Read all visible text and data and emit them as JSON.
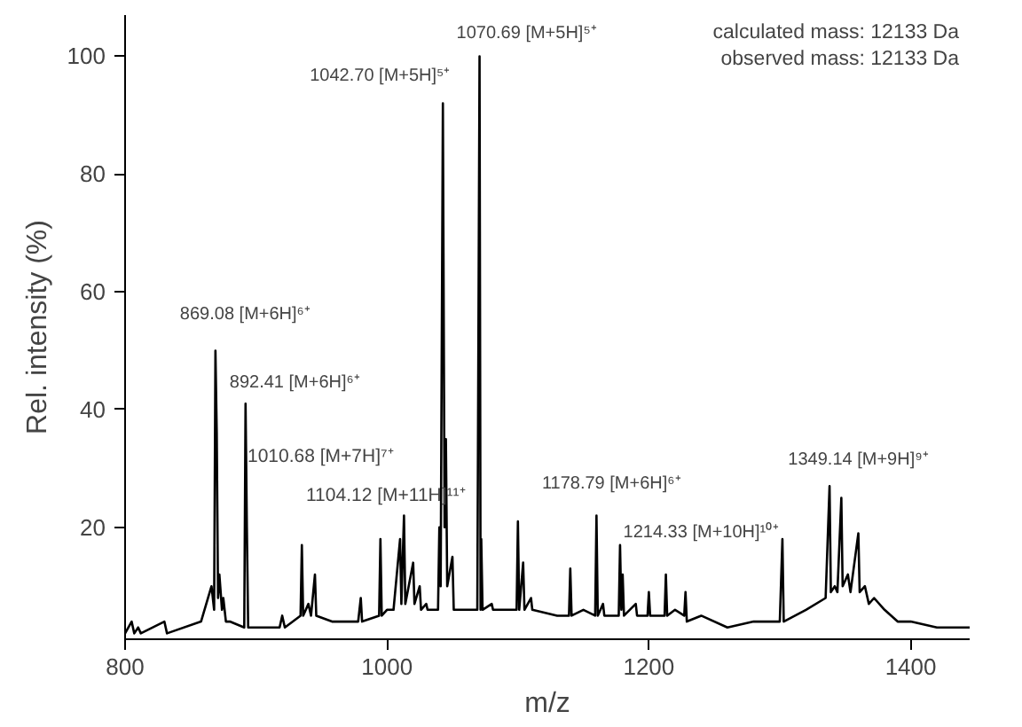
{
  "chart_data": {
    "type": "line",
    "xlabel": "m/z",
    "ylabel": "Rel. intensity (%)",
    "xlim": [
      800,
      1445
    ],
    "ylim": [
      1,
      107
    ],
    "xticks": [
      800,
      1000,
      1200,
      1400
    ],
    "yticks": [
      20,
      40,
      60,
      80,
      100
    ],
    "grid": false,
    "marker": "none",
    "line_style": "solid",
    "series": [
      {
        "color": "#000000",
        "x": [
          800,
          805,
          807,
          810,
          812,
          830,
          832,
          858,
          866,
          868,
          869,
          870,
          871,
          872,
          874,
          875,
          877,
          880,
          891,
          892,
          893,
          894,
          900,
          918,
          920,
          922,
          934,
          935,
          936,
          940,
          942,
          945,
          946,
          958,
          960,
          978,
          980,
          981,
          994,
          995,
          996,
          1000,
          1005,
          1010,
          1011,
          1013,
          1014,
          1020,
          1021,
          1025,
          1026,
          1030,
          1031,
          1039,
          1040,
          1041,
          1042.7,
          1044,
          1045,
          1046,
          1050,
          1051,
          1060,
          1069,
          1070.7,
          1071.5,
          1072,
          1073,
          1080,
          1081,
          1090,
          1099,
          1100,
          1101,
          1104,
          1105,
          1110,
          1111,
          1130,
          1139,
          1140,
          1141,
          1150,
          1159,
          1160,
          1161,
          1165,
          1166,
          1177,
          1178,
          1179,
          1180,
          1181,
          1190,
          1191,
          1199,
          1200,
          1201,
          1212,
          1213,
          1214,
          1220,
          1227,
          1228,
          1229,
          1240,
          1260,
          1280,
          1300,
          1302,
          1303,
          1320,
          1335,
          1338,
          1339,
          1342,
          1344,
          1347,
          1348,
          1352,
          1354,
          1360,
          1361,
          1365,
          1368,
          1372,
          1380,
          1390,
          1400,
          1420,
          1445
        ],
        "values": [
          2,
          4,
          2,
          3,
          2,
          4,
          2,
          4,
          10,
          6,
          50,
          36,
          8,
          12,
          6,
          8,
          4,
          4,
          3,
          41,
          20,
          3,
          3,
          3,
          5,
          3,
          5,
          17,
          5,
          7,
          5,
          12,
          5,
          4,
          4,
          4,
          8,
          4,
          5,
          18,
          5,
          6,
          6,
          18,
          7,
          22,
          7,
          14,
          7,
          10,
          6,
          7,
          6,
          6,
          20,
          10,
          92,
          20,
          35,
          10,
          15,
          6,
          6,
          6,
          100,
          6,
          18,
          6,
          7,
          6,
          6,
          6,
          21,
          6,
          14,
          6,
          8,
          6,
          5,
          5,
          13,
          5,
          6,
          5,
          22,
          5,
          7,
          5,
          5,
          17,
          6,
          12,
          5,
          7,
          5,
          5,
          9,
          5,
          5,
          12,
          5,
          6,
          5,
          9,
          4,
          5,
          3,
          4,
          4,
          18,
          4,
          6,
          8,
          27,
          9,
          10,
          9,
          25,
          10,
          12,
          9,
          19,
          9,
          10,
          7,
          8,
          6,
          4,
          4,
          3,
          3
        ]
      }
    ],
    "annotations": [
      {
        "text": "1070.69 [M+5H]⁵⁺",
        "x": 1070.7,
        "y": 100
      },
      {
        "text": "1042.70 [M+5H]⁵⁺",
        "x": 1042.7,
        "y": 92
      },
      {
        "text": "869.08 [M+6H]⁶⁺",
        "x": 869,
        "y": 50
      },
      {
        "text": "892.41 [M+6H]⁶⁺",
        "x": 892,
        "y": 41
      },
      "1010.68 [M+7H]⁷⁺",
      "1104.12 [M+11H]¹¹⁺",
      {
        "text": "1178.79 [M+6H]⁶⁺",
        "x": 1178,
        "y": 17
      },
      {
        "text": "1214.33 [M+10H]¹⁰⁺",
        "x": 1213,
        "y": 12
      },
      {
        "text": "1349.14 [M+9H]⁹⁺",
        "x": 1347,
        "y": 25
      },
      "calculated mass: 12133 Da",
      "observed mass: 12133 Da"
    ]
  }
}
